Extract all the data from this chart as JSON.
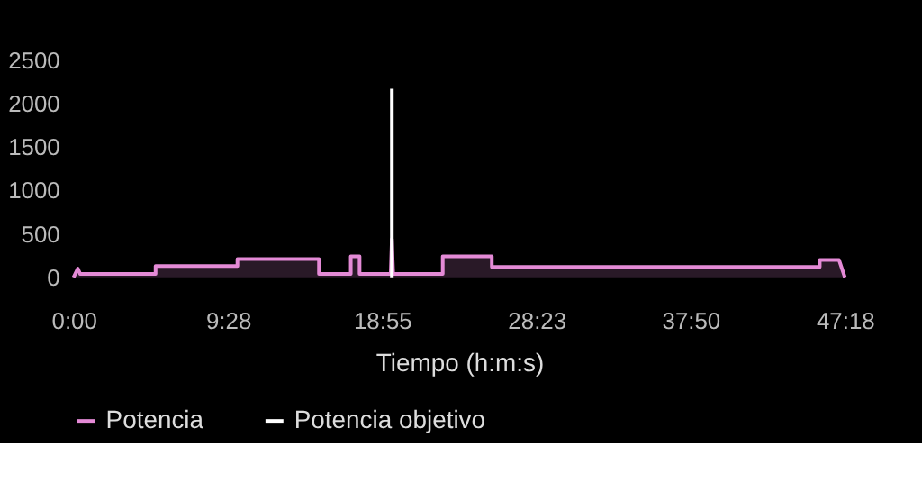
{
  "chart_data": {
    "type": "area",
    "xlabel": "Tiempo (h:m:s)",
    "xlim": [
      0,
      47.3
    ],
    "xticks": [
      {
        "value": 0,
        "label": "0:00"
      },
      {
        "value": 9.467,
        "label": "9:28"
      },
      {
        "value": 18.917,
        "label": "18:55"
      },
      {
        "value": 28.383,
        "label": "28:23"
      },
      {
        "value": 37.833,
        "label": "37:50"
      },
      {
        "value": 47.3,
        "label": "47:18"
      }
    ],
    "ylim": [
      0,
      2500
    ],
    "yticks": [
      0,
      500,
      1000,
      1500,
      2000,
      2500
    ],
    "grid": false,
    "legend": "bottom",
    "series": [
      {
        "name": "Potencia",
        "color": "#e48ad6",
        "x": [
          0,
          0.26,
          0.4,
          5.03,
          5.03,
          10.05,
          10.05,
          15.05,
          15.05,
          17.0,
          17.0,
          17.54,
          17.54,
          19.45,
          19.52,
          19.6,
          22.64,
          22.64,
          25.65,
          25.65,
          45.76,
          45.76,
          46.94,
          47.3
        ],
        "values": [
          0,
          100,
          40,
          40,
          130,
          130,
          210,
          210,
          40,
          40,
          240,
          240,
          40,
          40,
          440,
          40,
          40,
          240,
          240,
          120,
          120,
          200,
          200,
          0
        ]
      },
      {
        "name": "Potencia objetivo",
        "type": "line",
        "color": "#ffffff",
        "x": [
          19.52,
          19.52
        ],
        "values": [
          0,
          2170
        ]
      }
    ]
  }
}
